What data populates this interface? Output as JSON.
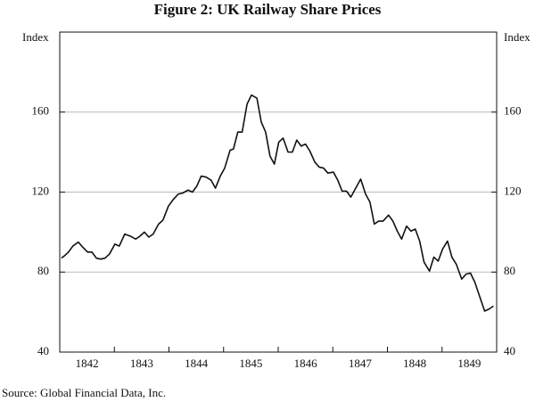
{
  "chart_data": {
    "type": "line",
    "title": "Figure 2: UK Railway Share Prices",
    "y_label": "Index",
    "y2_label": "Index",
    "source": "Source: Global Financial Data, Inc.",
    "x": [
      1842.03,
      1842.08,
      1842.16,
      1842.24,
      1842.34,
      1842.42,
      1842.51,
      1842.59,
      1842.67,
      1842.75,
      1842.83,
      1842.91,
      1843.01,
      1843.09,
      1843.19,
      1843.29,
      1843.39,
      1843.47,
      1843.55,
      1843.63,
      1843.71,
      1843.81,
      1843.89,
      1843.99,
      1844.07,
      1844.17,
      1844.25,
      1844.35,
      1844.43,
      1844.51,
      1844.59,
      1844.68,
      1844.77,
      1844.85,
      1844.94,
      1845.02,
      1845.12,
      1845.18,
      1845.26,
      1845.34,
      1845.43,
      1845.51,
      1845.61,
      1845.69,
      1845.77,
      1845.85,
      1845.93,
      1846.01,
      1846.09,
      1846.18,
      1846.26,
      1846.34,
      1846.42,
      1846.5,
      1846.58,
      1846.67,
      1846.75,
      1846.83,
      1846.91,
      1847.01,
      1847.09,
      1847.17,
      1847.25,
      1847.33,
      1847.42,
      1847.51,
      1847.6,
      1847.68,
      1847.76,
      1847.84,
      1847.92,
      1848.02,
      1848.1,
      1848.18,
      1848.26,
      1848.35,
      1848.43,
      1848.51,
      1848.59,
      1848.67,
      1848.77,
      1848.85,
      1848.93,
      1849.01,
      1849.1,
      1849.18,
      1849.26,
      1849.36,
      1849.44,
      1849.52,
      1849.6,
      1849.68,
      1849.78,
      1849.86,
      1849.94
    ],
    "series": [
      {
        "name": "UK Railway Share Prices",
        "color": "#111111",
        "values": [
          87,
          88,
          90,
          93,
          95,
          92.5,
          90,
          90,
          87,
          86.5,
          87,
          89,
          94,
          93,
          99,
          98,
          96.5,
          98,
          100,
          97.5,
          99,
          104,
          106,
          113,
          116,
          119,
          119.5,
          121,
          120,
          123,
          128,
          127.5,
          126,
          122,
          128,
          132,
          141,
          141.5,
          150,
          150,
          164,
          168.5,
          167,
          155,
          150,
          138,
          134,
          145,
          147,
          140,
          140,
          146,
          143,
          144,
          140.5,
          135,
          132.5,
          132,
          129.5,
          130,
          126,
          120.5,
          120.5,
          117.5,
          122,
          126.5,
          119,
          115,
          104,
          105.5,
          105.5,
          108.5,
          105.5,
          100.5,
          96.5,
          103,
          100.5,
          101.5,
          95.5,
          85,
          80.5,
          87.5,
          85.5,
          91.5,
          95.5,
          87.5,
          84,
          76.5,
          79,
          79.5,
          75,
          68.5,
          60.5,
          61.5,
          63
        ]
      }
    ],
    "xlim": [
      1842,
      1850
    ],
    "xticks": [
      {
        "value": 1842.5,
        "label": "1842"
      },
      {
        "value": 1843.5,
        "label": "1843"
      },
      {
        "value": 1844.5,
        "label": "1844"
      },
      {
        "value": 1845.5,
        "label": "1845"
      },
      {
        "value": 1846.5,
        "label": "1846"
      },
      {
        "value": 1847.5,
        "label": "1847"
      },
      {
        "value": 1848.5,
        "label": "1848"
      },
      {
        "value": 1849.5,
        "label": "1849"
      }
    ],
    "ylim": [
      40,
      200
    ],
    "yticks": [
      40,
      80,
      120,
      160
    ],
    "grid": true
  }
}
